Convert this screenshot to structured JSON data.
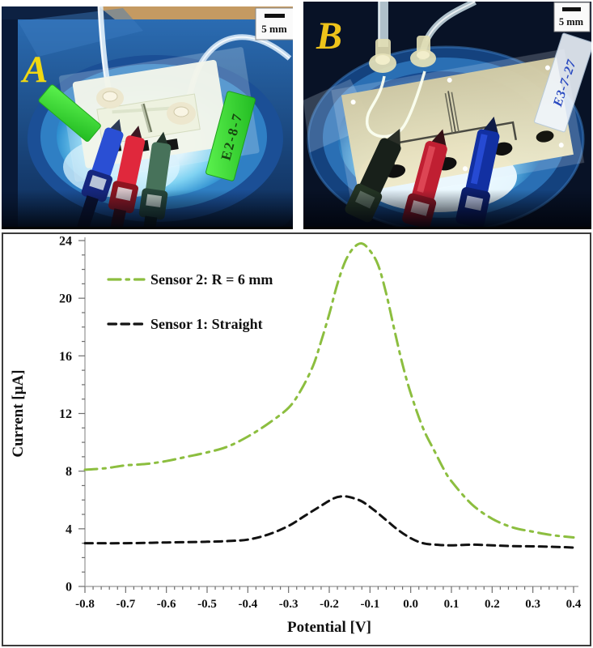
{
  "figure": {
    "panel_a": {
      "label": "A",
      "scale_bar": "5 mm",
      "chip_label": "E2-8-7"
    },
    "panel_b": {
      "label": "B",
      "scale_bar": "5 mm",
      "chip_label": "E3-7-27"
    }
  },
  "chart_data": {
    "type": "line",
    "title": "",
    "xlabel": "Potential [V]",
    "ylabel": "Current [µA]",
    "xlim": [
      -0.8,
      0.4
    ],
    "ylim": [
      0,
      24
    ],
    "x_major_tick": 0.1,
    "x_minor_tick": 0.02,
    "y_major_tick": 4,
    "y_minor_tick": 1,
    "x_tick_labels": [
      "-0.8",
      "-0.7",
      "-0.6",
      "-0.5",
      "-0.4",
      "-0.3",
      "-0.2",
      "-0.1",
      "0.0",
      "0.1",
      "0.2",
      "0.3",
      "0.4"
    ],
    "y_tick_labels": [
      "0",
      "4",
      "8",
      "12",
      "16",
      "20",
      "24"
    ],
    "grid": false,
    "legend_position": "upper-left-inside",
    "series": [
      {
        "name": "Sensor 2: R = 6 mm",
        "color": "#8CBE3F",
        "dash": "dash-dot",
        "dash_array": "15 7 3.5 7",
        "width": 3,
        "x": [
          -0.8,
          -0.75,
          -0.7,
          -0.65,
          -0.6,
          -0.55,
          -0.5,
          -0.45,
          -0.4,
          -0.35,
          -0.3,
          -0.27,
          -0.24,
          -0.22,
          -0.2,
          -0.18,
          -0.16,
          -0.14,
          -0.12,
          -0.1,
          -0.08,
          -0.06,
          -0.04,
          -0.02,
          0.0,
          0.03,
          0.06,
          0.08,
          0.1,
          0.15,
          0.2,
          0.25,
          0.3,
          0.35,
          0.4
        ],
        "y": [
          8.1,
          8.2,
          8.4,
          8.5,
          8.7,
          9.0,
          9.3,
          9.7,
          10.4,
          11.3,
          12.4,
          13.6,
          15.3,
          17.0,
          18.9,
          21.0,
          22.6,
          23.5,
          23.8,
          23.3,
          22.3,
          20.3,
          17.8,
          15.4,
          13.4,
          11.0,
          9.3,
          8.2,
          7.3,
          5.7,
          4.7,
          4.1,
          3.8,
          3.55,
          3.4
        ]
      },
      {
        "name": "Sensor 1: Straight",
        "color": "#121212",
        "dash": "dashed",
        "dash_array": "9.5 6.5",
        "width": 3,
        "x": [
          -0.8,
          -0.7,
          -0.6,
          -0.5,
          -0.45,
          -0.4,
          -0.35,
          -0.3,
          -0.26,
          -0.22,
          -0.19,
          -0.17,
          -0.15,
          -0.12,
          -0.09,
          -0.06,
          -0.03,
          0.0,
          0.03,
          0.06,
          0.1,
          0.15,
          0.2,
          0.25,
          0.3,
          0.35,
          0.4
        ],
        "y": [
          3.0,
          3.0,
          3.05,
          3.1,
          3.15,
          3.25,
          3.6,
          4.2,
          4.9,
          5.6,
          6.1,
          6.25,
          6.2,
          5.9,
          5.3,
          4.6,
          3.9,
          3.35,
          3.0,
          2.9,
          2.85,
          2.9,
          2.85,
          2.8,
          2.78,
          2.75,
          2.7
        ]
      }
    ],
    "axis_line_color": "#a8a8a8",
    "tick_color": "#6e6e6e",
    "label_color": "#111111"
  }
}
